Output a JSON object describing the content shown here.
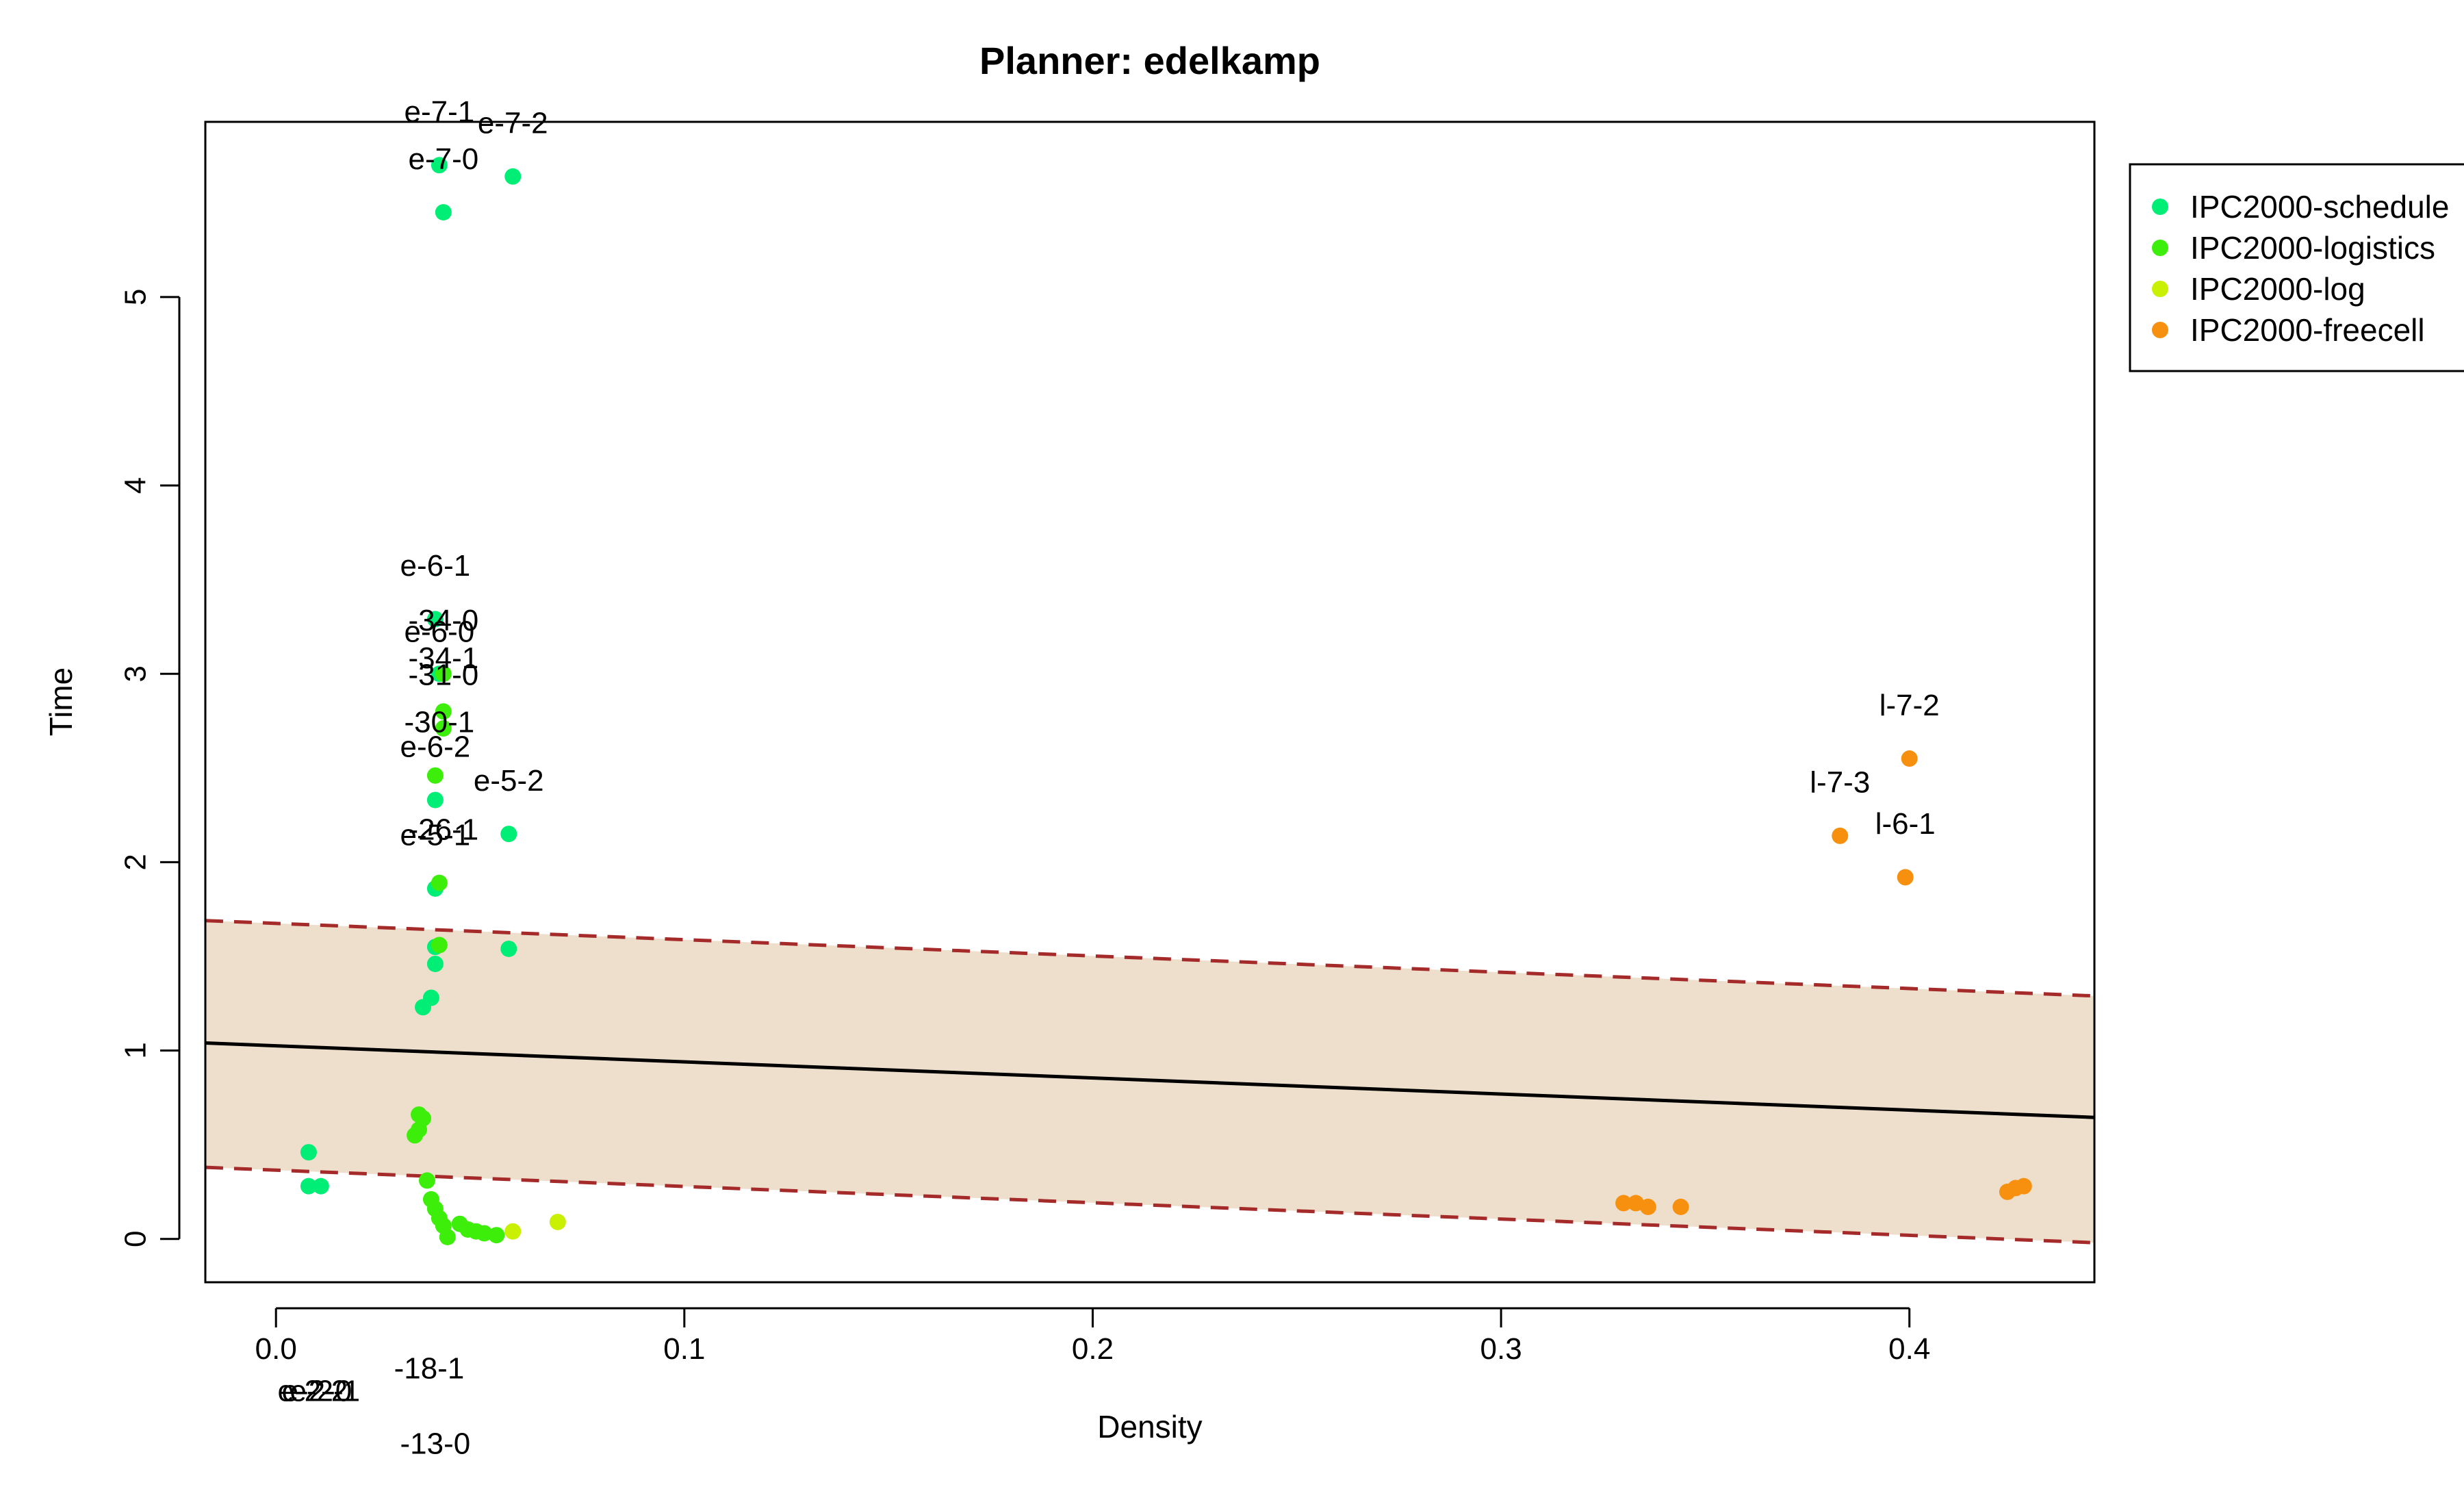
{
  "chart_data": {
    "type": "scatter",
    "title": "Planner: edelkamp",
    "xlabel": "Density",
    "ylabel": "Time",
    "xlim": [
      -0.0173,
      0.4453
    ],
    "ylim": [
      -0.23,
      5.93
    ],
    "xticks": [
      "0.0",
      "0.1",
      "0.2",
      "0.3",
      "0.4"
    ],
    "yticks": [
      "0",
      "1",
      "2",
      "3",
      "4",
      "5"
    ],
    "grid": false,
    "legend_position": "top-right",
    "fit_line": {
      "x": [
        -0.0173,
        0.4453
      ],
      "y": [
        1.04,
        0.645
      ]
    },
    "band_upper": {
      "x": [
        -0.0173,
        0.4453
      ],
      "y": [
        1.69,
        1.29
      ]
    },
    "band_lower": {
      "x": [
        -0.0173,
        0.4453
      ],
      "y": [
        0.38,
        -0.02
      ]
    },
    "colors": {
      "band_fill": "#eedfcc",
      "band_line": "#a52a2a",
      "fit_line": "#000000"
    },
    "series": [
      {
        "name": "IPC2000-schedule",
        "color": "#00ee76",
        "points": [
          {
            "x": 0.041,
            "y": 5.45
          },
          {
            "x": 0.04,
            "y": 5.7
          },
          {
            "x": 0.058,
            "y": 5.64
          },
          {
            "x": 0.039,
            "y": 3.29
          },
          {
            "x": 0.04,
            "y": 3.0
          },
          {
            "x": 0.039,
            "y": 2.33
          },
          {
            "x": 0.057,
            "y": 2.15
          },
          {
            "x": 0.039,
            "y": 1.86
          },
          {
            "x": 0.039,
            "y": 1.55
          },
          {
            "x": 0.057,
            "y": 1.54
          },
          {
            "x": 0.039,
            "y": 1.46
          },
          {
            "x": 0.038,
            "y": 1.28
          },
          {
            "x": 0.036,
            "y": 1.23
          },
          {
            "x": 0.008,
            "y": 0.46
          },
          {
            "x": 0.008,
            "y": 0.28
          },
          {
            "x": 0.011,
            "y": 0.28
          }
        ]
      },
      {
        "name": "IPC2000-logistics",
        "color": "#3cee0a",
        "points": [
          {
            "x": 0.041,
            "y": 3.0
          },
          {
            "x": 0.041,
            "y": 2.8
          },
          {
            "x": 0.041,
            "y": 2.71
          },
          {
            "x": 0.039,
            "y": 2.46
          },
          {
            "x": 0.04,
            "y": 1.89
          },
          {
            "x": 0.04,
            "y": 1.56
          },
          {
            "x": 0.035,
            "y": 0.66
          },
          {
            "x": 0.036,
            "y": 0.64
          },
          {
            "x": 0.035,
            "y": 0.58
          },
          {
            "x": 0.034,
            "y": 0.55
          },
          {
            "x": 0.037,
            "y": 0.31
          },
          {
            "x": 0.038,
            "y": 0.21
          },
          {
            "x": 0.039,
            "y": 0.16
          },
          {
            "x": 0.04,
            "y": 0.11
          },
          {
            "x": 0.041,
            "y": 0.07
          },
          {
            "x": 0.042,
            "y": 0.01
          },
          {
            "x": 0.045,
            "y": 0.08
          },
          {
            "x": 0.047,
            "y": 0.05
          },
          {
            "x": 0.049,
            "y": 0.04
          },
          {
            "x": 0.051,
            "y": 0.03
          },
          {
            "x": 0.054,
            "y": 0.02
          }
        ]
      },
      {
        "name": "IPC2000-log",
        "color": "#c8f000",
        "points": [
          {
            "x": 0.058,
            "y": 0.04
          },
          {
            "x": 0.069,
            "y": 0.09
          }
        ]
      },
      {
        "name": "IPC2000-freecell",
        "color": "#f6900e",
        "points": [
          {
            "x": 0.4,
            "y": 2.55
          },
          {
            "x": 0.383,
            "y": 2.14
          },
          {
            "x": 0.399,
            "y": 1.92
          },
          {
            "x": 0.33,
            "y": 0.19
          },
          {
            "x": 0.333,
            "y": 0.19
          },
          {
            "x": 0.336,
            "y": 0.17
          },
          {
            "x": 0.344,
            "y": 0.17
          },
          {
            "x": 0.424,
            "y": 0.25
          },
          {
            "x": 0.426,
            "y": 0.27
          },
          {
            "x": 0.428,
            "y": 0.28
          }
        ]
      }
    ],
    "annotations": [
      {
        "text": "e-7-1",
        "x": 0.04,
        "y": 5.93
      },
      {
        "text": "e-7-2",
        "x": 0.058,
        "y": 5.87
      },
      {
        "text": "e-7-0",
        "x": 0.041,
        "y": 5.68
      },
      {
        "text": "e-6-1",
        "x": 0.039,
        "y": 3.52
      },
      {
        "text": "-34-0",
        "x": 0.041,
        "y": 3.23
      },
      {
        "text": "e-6-0",
        "x": 0.04,
        "y": 3.17
      },
      {
        "text": "-34-1",
        "x": 0.041,
        "y": 3.03
      },
      {
        "text": "-31-0",
        "x": 0.041,
        "y": 2.94
      },
      {
        "text": "-30-1",
        "x": 0.04,
        "y": 2.69
      },
      {
        "text": "e-6-2",
        "x": 0.039,
        "y": 2.56
      },
      {
        "text": "e-5-2",
        "x": 0.057,
        "y": 2.38
      },
      {
        "text": "-26-1",
        "x": 0.041,
        "y": 2.12
      },
      {
        "text": "e-5-1",
        "x": 0.039,
        "y": 2.09
      },
      {
        "text": "l-7-2",
        "x": 0.4,
        "y": 2.78
      },
      {
        "text": "l-7-3",
        "x": 0.383,
        "y": 2.37
      },
      {
        "text": "l-6-1",
        "x": 0.399,
        "y": 2.15
      },
      {
        "text": "-18-1",
        "x": 0.0375,
        "y": -0.74
      },
      {
        "text": "e-2-2",
        "x": 0.009,
        "y": -0.86
      },
      {
        "text": "e-2-0",
        "x": 0.01,
        "y": -0.86
      },
      {
        "text": "e-2-1",
        "x": 0.012,
        "y": -0.86
      },
      {
        "text": "-13-0",
        "x": 0.039,
        "y": -1.14
      }
    ]
  }
}
